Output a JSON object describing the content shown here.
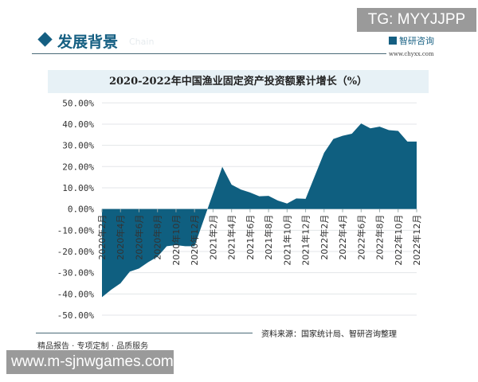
{
  "overlay_top": "TG: MYYJJPP",
  "header": {
    "section_title": "发展背景",
    "section_en": "Chain",
    "logo_text": "智研咨询",
    "logo_url": "www.chyxx.com"
  },
  "footer": {
    "source": "资料来源：国家统计局、智研咨询整理",
    "tagline": "精品报告 · 专项定制 · 品质服务",
    "overlay_bottom": "www.m-sjnwgames.com"
  },
  "colors": {
    "area": "#0f5f80",
    "title_band": "#e7f1f6",
    "grid": "#e3e6e8"
  },
  "chart_data": {
    "type": "area",
    "title": "2020-2022年中国渔业固定资产投资额累计增长（%）",
    "xlabel": "",
    "ylabel": "",
    "ylim": [
      -50,
      50
    ],
    "yticks": [
      "50.00%",
      "40.00%",
      "30.00%",
      "20.00%",
      "10.00%",
      "0.00%",
      "-10.00%",
      "-20.00%",
      "-30.00%",
      "-40.00%",
      "-50.00%"
    ],
    "grid": true,
    "categories": [
      "2020年2月",
      "2020年3月",
      "2020年4月",
      "2020年5月",
      "2020年6月",
      "2020年7月",
      "2020年8月",
      "2020年9月",
      "2020年10月",
      "2020年11月",
      "2020年12月",
      "2021年1月",
      "2021年2月",
      "2021年3月",
      "2021年4月",
      "2021年5月",
      "2021年6月",
      "2021年7月",
      "2021年8月",
      "2021年9月",
      "2021年10月",
      "2021年11月",
      "2021年12月",
      "2022年1月",
      "2022年2月",
      "2022年3月",
      "2022年4月",
      "2022年5月",
      "2022年6月",
      "2022年7月",
      "2022年8月",
      "2022年9月",
      "2022年10月",
      "2022年11月",
      "2022年12月"
    ],
    "tick_labels": [
      "2020年2月",
      "2020年4月",
      "2020年6月",
      "2020年8月",
      "2020年10月",
      "2020年12月",
      "2021年2月",
      "2021年4月",
      "2021年6月",
      "2021年8月",
      "2021年10月",
      "2021年12月",
      "2022年2月",
      "2022年4月",
      "2022年6月",
      "2022年8月",
      "2022年10月",
      "2022年12月"
    ],
    "values": [
      -41.5,
      -38,
      -35,
      -29.5,
      -28,
      -25,
      -22.5,
      -17.5,
      -17,
      -17.5,
      -17.5,
      null,
      null,
      19.9,
      11.5,
      9.2,
      7.8,
      6,
      6.2,
      4,
      2.6,
      5,
      4.8,
      null,
      26.5,
      33,
      34.5,
      35.5,
      40.3,
      38,
      38.8,
      37.2,
      36.8,
      31.8,
      31.8
    ]
  }
}
